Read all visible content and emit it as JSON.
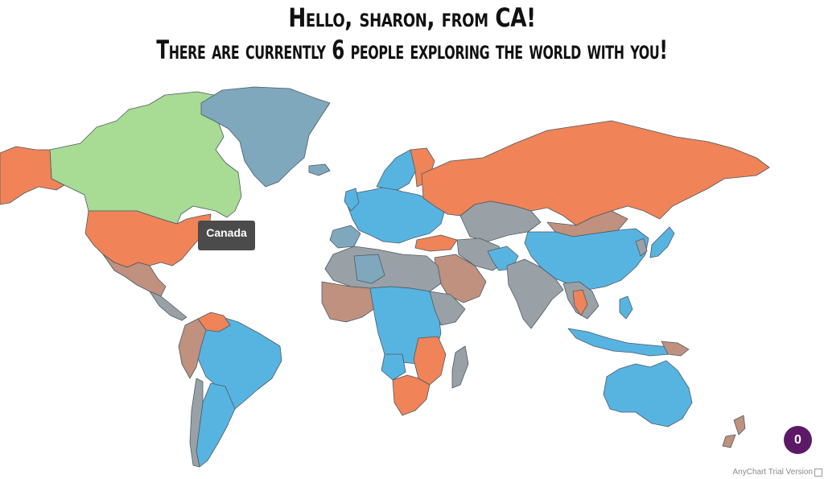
{
  "greeting": {
    "line1": "Hello, sharon, from CA!",
    "line2": "There are currently 6 people exploring the world with you!"
  },
  "tooltip": {
    "label": "Canada"
  },
  "notification_badge": {
    "count": "0"
  },
  "credit": {
    "text": "AnyChart Trial Version"
  },
  "colors": {
    "highlight_green": "#a8db93",
    "orange": "#f08357",
    "blue": "#57b4e1",
    "steel_blue": "#7fa8bd",
    "grey": "#9aa1a6",
    "muted_rose": "#bf917e",
    "badge_purple": "#5c1a66",
    "tooltip_bg": "#4b4b4b"
  }
}
